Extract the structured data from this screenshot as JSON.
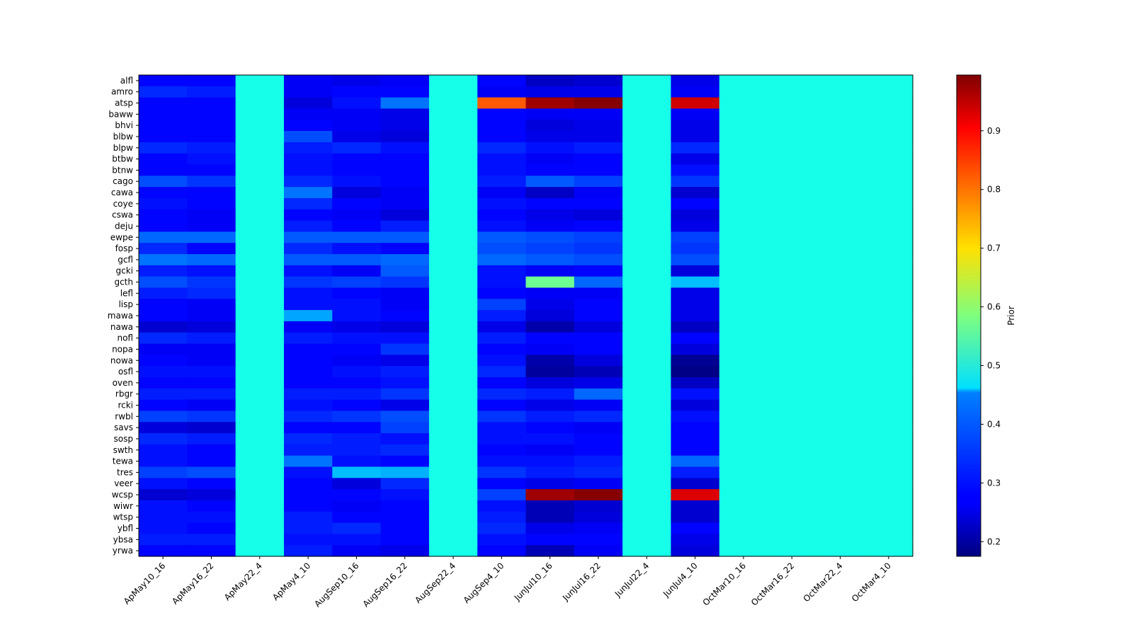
{
  "chart_data": {
    "type": "heatmap",
    "title": "",
    "xlabel": "",
    "ylabel": "",
    "colormap": "jet",
    "colorbar": {
      "label": "Prior",
      "range": [
        0.175,
        0.995
      ],
      "ticks": [
        0.2,
        0.3,
        0.4,
        0.5,
        0.6,
        0.7,
        0.8,
        0.9
      ],
      "tick_labels": [
        "0.2",
        "0.3",
        "0.4",
        "0.5",
        "0.6",
        "0.7",
        "0.8",
        "0.9"
      ]
    },
    "columns": [
      "ApMay10_16",
      "ApMay16_22",
      "ApMay22_4",
      "ApMay4_10",
      "AugSep10_16",
      "AugSep16_22",
      "AugSep22_4",
      "AugSep4_10",
      "JunJul10_16",
      "JunJul16_22",
      "JunJul22_4",
      "JunJul4_10",
      "OctMar10_16",
      "OctMar16_22",
      "OctMar22_4",
      "OctMar4_10"
    ],
    "rows": [
      "alfl",
      "amro",
      "atsp",
      "baww",
      "bhvi",
      "blbw",
      "blpw",
      "btbw",
      "btnw",
      "cago",
      "cawa",
      "coye",
      "cswa",
      "deju",
      "ewpe",
      "fosp",
      "gcfl",
      "gcki",
      "gcth",
      "lefl",
      "lisp",
      "mawa",
      "nawa",
      "nofl",
      "nopa",
      "nowa",
      "osfl",
      "oven",
      "rbgr",
      "rcki",
      "rwbl",
      "savs",
      "sosp",
      "swth",
      "tewa",
      "tres",
      "veer",
      "wcsp",
      "wiwr",
      "wtsp",
      "ybfl",
      "ybsa",
      "yrwa"
    ],
    "values": [
      [
        0.28,
        0.28,
        0.5,
        0.27,
        0.26,
        0.27,
        0.5,
        0.28,
        0.23,
        0.24,
        0.5,
        0.26,
        0.5,
        0.5,
        0.5,
        0.5
      ],
      [
        0.31,
        0.3,
        0.5,
        0.27,
        0.28,
        0.28,
        0.5,
        0.27,
        0.26,
        0.26,
        0.5,
        0.27,
        0.5,
        0.5,
        0.5,
        0.5
      ],
      [
        0.28,
        0.28,
        0.5,
        0.25,
        0.29,
        0.37,
        0.5,
        0.82,
        0.97,
        0.99,
        0.5,
        0.93,
        0.5,
        0.5,
        0.5,
        0.5
      ],
      [
        0.28,
        0.28,
        0.5,
        0.27,
        0.27,
        0.26,
        0.5,
        0.28,
        0.27,
        0.27,
        0.5,
        0.27,
        0.5,
        0.5,
        0.5,
        0.5
      ],
      [
        0.28,
        0.28,
        0.5,
        0.28,
        0.27,
        0.26,
        0.5,
        0.28,
        0.25,
        0.26,
        0.5,
        0.26,
        0.5,
        0.5,
        0.5,
        0.5
      ],
      [
        0.28,
        0.28,
        0.5,
        0.34,
        0.26,
        0.25,
        0.5,
        0.28,
        0.26,
        0.26,
        0.5,
        0.26,
        0.5,
        0.5,
        0.5,
        0.5
      ],
      [
        0.31,
        0.3,
        0.5,
        0.3,
        0.31,
        0.29,
        0.5,
        0.31,
        0.29,
        0.3,
        0.5,
        0.31,
        0.5,
        0.5,
        0.5,
        0.5
      ],
      [
        0.28,
        0.29,
        0.5,
        0.29,
        0.28,
        0.28,
        0.5,
        0.29,
        0.27,
        0.28,
        0.5,
        0.26,
        0.5,
        0.5,
        0.5,
        0.5
      ],
      [
        0.28,
        0.28,
        0.5,
        0.29,
        0.28,
        0.28,
        0.5,
        0.29,
        0.28,
        0.28,
        0.5,
        0.29,
        0.5,
        0.5,
        0.5,
        0.5
      ],
      [
        0.34,
        0.32,
        0.5,
        0.31,
        0.29,
        0.28,
        0.5,
        0.3,
        0.35,
        0.33,
        0.5,
        0.32,
        0.5,
        0.5,
        0.5,
        0.5
      ],
      [
        0.28,
        0.28,
        0.5,
        0.37,
        0.25,
        0.27,
        0.5,
        0.27,
        0.23,
        0.27,
        0.5,
        0.24,
        0.5,
        0.5,
        0.5,
        0.5
      ],
      [
        0.29,
        0.28,
        0.5,
        0.31,
        0.28,
        0.27,
        0.5,
        0.29,
        0.28,
        0.28,
        0.5,
        0.28,
        0.5,
        0.5,
        0.5,
        0.5
      ],
      [
        0.28,
        0.27,
        0.5,
        0.28,
        0.27,
        0.25,
        0.5,
        0.28,
        0.26,
        0.25,
        0.5,
        0.25,
        0.5,
        0.5,
        0.5,
        0.5
      ],
      [
        0.28,
        0.27,
        0.5,
        0.3,
        0.28,
        0.3,
        0.5,
        0.29,
        0.27,
        0.28,
        0.5,
        0.26,
        0.5,
        0.5,
        0.5,
        0.5
      ],
      [
        0.36,
        0.36,
        0.5,
        0.35,
        0.35,
        0.35,
        0.5,
        0.35,
        0.34,
        0.33,
        0.5,
        0.33,
        0.5,
        0.5,
        0.5,
        0.5
      ],
      [
        0.31,
        0.28,
        0.5,
        0.31,
        0.29,
        0.28,
        0.5,
        0.34,
        0.33,
        0.32,
        0.5,
        0.32,
        0.5,
        0.5,
        0.5,
        0.5
      ],
      [
        0.37,
        0.36,
        0.5,
        0.35,
        0.35,
        0.36,
        0.5,
        0.36,
        0.35,
        0.34,
        0.5,
        0.34,
        0.5,
        0.5,
        0.5,
        0.5
      ],
      [
        0.3,
        0.29,
        0.5,
        0.29,
        0.27,
        0.35,
        0.5,
        0.29,
        0.27,
        0.28,
        0.5,
        0.25,
        0.5,
        0.5,
        0.5,
        0.5
      ],
      [
        0.34,
        0.32,
        0.5,
        0.32,
        0.33,
        0.32,
        0.5,
        0.29,
        0.57,
        0.36,
        0.5,
        0.43,
        0.5,
        0.5,
        0.5,
        0.5
      ],
      [
        0.3,
        0.31,
        0.5,
        0.29,
        0.28,
        0.27,
        0.5,
        0.28,
        0.27,
        0.27,
        0.5,
        0.26,
        0.5,
        0.5,
        0.5,
        0.5
      ],
      [
        0.28,
        0.27,
        0.5,
        0.29,
        0.29,
        0.27,
        0.5,
        0.33,
        0.26,
        0.28,
        0.5,
        0.26,
        0.5,
        0.5,
        0.5,
        0.5
      ],
      [
        0.28,
        0.27,
        0.5,
        0.41,
        0.29,
        0.28,
        0.5,
        0.3,
        0.25,
        0.28,
        0.5,
        0.26,
        0.5,
        0.5,
        0.5,
        0.5
      ],
      [
        0.24,
        0.25,
        0.5,
        0.27,
        0.26,
        0.25,
        0.5,
        0.26,
        0.21,
        0.25,
        0.5,
        0.23,
        0.5,
        0.5,
        0.5,
        0.5
      ],
      [
        0.31,
        0.3,
        0.5,
        0.3,
        0.29,
        0.29,
        0.5,
        0.3,
        0.28,
        0.28,
        0.5,
        0.28,
        0.5,
        0.5,
        0.5,
        0.5
      ],
      [
        0.27,
        0.27,
        0.5,
        0.28,
        0.28,
        0.32,
        0.5,
        0.28,
        0.27,
        0.28,
        0.5,
        0.25,
        0.5,
        0.5,
        0.5,
        0.5
      ],
      [
        0.28,
        0.27,
        0.5,
        0.28,
        0.27,
        0.26,
        0.5,
        0.29,
        0.21,
        0.25,
        0.5,
        0.19,
        0.5,
        0.5,
        0.5,
        0.5
      ],
      [
        0.29,
        0.29,
        0.5,
        0.28,
        0.29,
        0.3,
        0.5,
        0.31,
        0.2,
        0.22,
        0.5,
        0.18,
        0.5,
        0.5,
        0.5,
        0.5
      ],
      [
        0.28,
        0.28,
        0.5,
        0.28,
        0.28,
        0.29,
        0.5,
        0.28,
        0.25,
        0.26,
        0.5,
        0.23,
        0.5,
        0.5,
        0.5,
        0.5
      ],
      [
        0.3,
        0.3,
        0.5,
        0.3,
        0.3,
        0.32,
        0.5,
        0.31,
        0.3,
        0.36,
        0.5,
        0.29,
        0.5,
        0.5,
        0.5,
        0.5
      ],
      [
        0.28,
        0.27,
        0.5,
        0.29,
        0.28,
        0.26,
        0.5,
        0.28,
        0.26,
        0.27,
        0.5,
        0.25,
        0.5,
        0.5,
        0.5,
        0.5
      ],
      [
        0.33,
        0.32,
        0.5,
        0.31,
        0.32,
        0.34,
        0.5,
        0.32,
        0.3,
        0.31,
        0.5,
        0.29,
        0.5,
        0.5,
        0.5,
        0.5
      ],
      [
        0.25,
        0.24,
        0.5,
        0.28,
        0.28,
        0.33,
        0.5,
        0.29,
        0.28,
        0.27,
        0.5,
        0.28,
        0.5,
        0.5,
        0.5,
        0.5
      ],
      [
        0.31,
        0.3,
        0.5,
        0.31,
        0.3,
        0.29,
        0.5,
        0.29,
        0.29,
        0.28,
        0.5,
        0.28,
        0.5,
        0.5,
        0.5,
        0.5
      ],
      [
        0.29,
        0.28,
        0.5,
        0.3,
        0.3,
        0.31,
        0.5,
        0.28,
        0.27,
        0.28,
        0.5,
        0.28,
        0.5,
        0.5,
        0.5,
        0.5
      ],
      [
        0.29,
        0.28,
        0.5,
        0.37,
        0.29,
        0.28,
        0.5,
        0.29,
        0.29,
        0.3,
        0.5,
        0.36,
        0.5,
        0.5,
        0.5,
        0.5
      ],
      [
        0.33,
        0.34,
        0.5,
        0.29,
        0.43,
        0.42,
        0.5,
        0.32,
        0.3,
        0.31,
        0.5,
        0.3,
        0.5,
        0.5,
        0.5,
        0.5
      ],
      [
        0.29,
        0.28,
        0.5,
        0.28,
        0.25,
        0.31,
        0.5,
        0.28,
        0.26,
        0.27,
        0.5,
        0.24,
        0.5,
        0.5,
        0.5,
        0.5
      ],
      [
        0.24,
        0.25,
        0.5,
        0.28,
        0.28,
        0.29,
        0.5,
        0.33,
        0.97,
        0.99,
        0.5,
        0.92,
        0.5,
        0.5,
        0.5,
        0.5
      ],
      [
        0.29,
        0.28,
        0.5,
        0.28,
        0.27,
        0.28,
        0.5,
        0.29,
        0.22,
        0.24,
        0.5,
        0.24,
        0.5,
        0.5,
        0.5,
        0.5
      ],
      [
        0.29,
        0.29,
        0.5,
        0.3,
        0.28,
        0.28,
        0.5,
        0.3,
        0.22,
        0.25,
        0.5,
        0.24,
        0.5,
        0.5,
        0.5,
        0.5
      ],
      [
        0.29,
        0.28,
        0.5,
        0.3,
        0.31,
        0.28,
        0.5,
        0.31,
        0.26,
        0.27,
        0.5,
        0.28,
        0.5,
        0.5,
        0.5,
        0.5
      ],
      [
        0.3,
        0.3,
        0.5,
        0.29,
        0.29,
        0.28,
        0.5,
        0.29,
        0.28,
        0.28,
        0.5,
        0.26,
        0.5,
        0.5,
        0.5,
        0.5
      ],
      [
        0.28,
        0.28,
        0.5,
        0.3,
        0.27,
        0.26,
        0.5,
        0.28,
        0.22,
        0.27,
        0.5,
        0.25,
        0.5,
        0.5,
        0.5,
        0.5
      ]
    ]
  }
}
